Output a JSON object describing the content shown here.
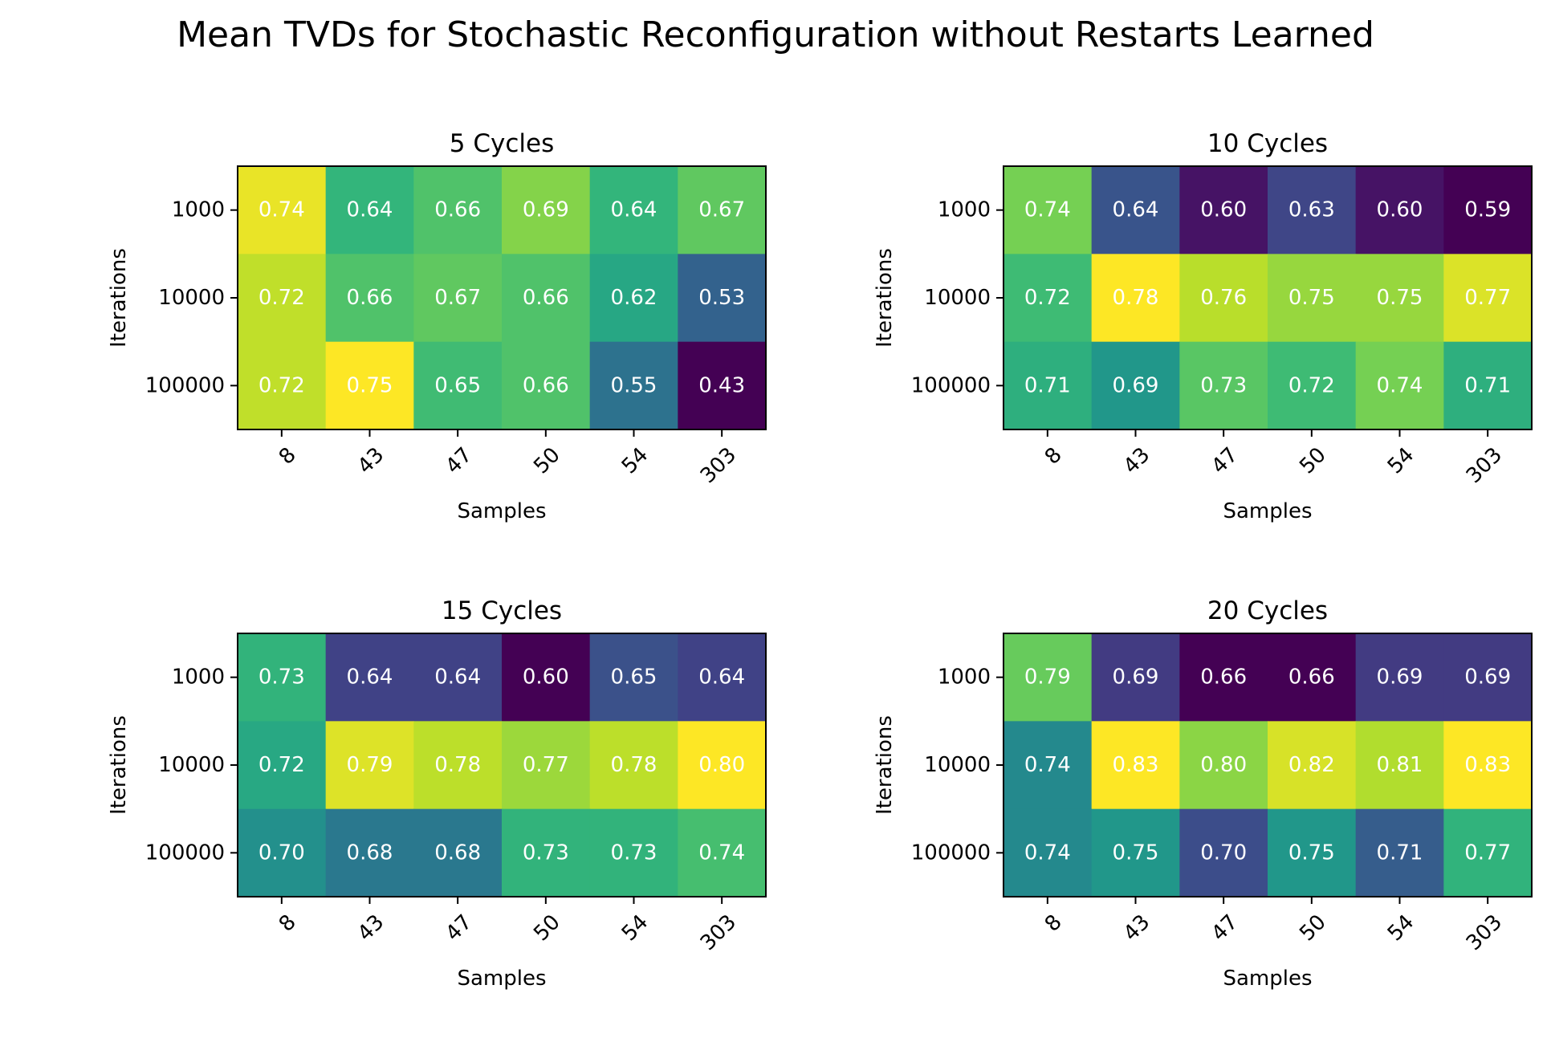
{
  "figure": {
    "title": "Mean TVDs for Stochastic Reconfiguration without Restarts Learned"
  },
  "chart_data": [
    {
      "type": "heatmap",
      "title": "5 Cycles",
      "xlabel": "Samples",
      "ylabel": "Iterations",
      "x_categories": [
        "8",
        "43",
        "47",
        "50",
        "54",
        "303"
      ],
      "y_categories": [
        "1000",
        "10000",
        "100000"
      ],
      "values": [
        [
          0.74,
          0.64,
          0.66,
          0.69,
          0.64,
          0.67
        ],
        [
          0.72,
          0.66,
          0.67,
          0.66,
          0.62,
          0.53
        ],
        [
          0.72,
          0.75,
          0.65,
          0.66,
          0.55,
          0.43
        ]
      ],
      "colormap": "viridis",
      "cell_text_color": "#ffffff"
    },
    {
      "type": "heatmap",
      "title": "10 Cycles",
      "xlabel": "Samples",
      "ylabel": "Iterations",
      "x_categories": [
        "8",
        "43",
        "47",
        "50",
        "54",
        "303"
      ],
      "y_categories": [
        "1000",
        "10000",
        "100000"
      ],
      "values": [
        [
          0.74,
          0.64,
          0.6,
          0.63,
          0.6,
          0.59
        ],
        [
          0.72,
          0.78,
          0.76,
          0.75,
          0.75,
          0.77
        ],
        [
          0.71,
          0.69,
          0.73,
          0.72,
          0.74,
          0.71
        ]
      ],
      "colormap": "viridis",
      "cell_text_color": "#ffffff"
    },
    {
      "type": "heatmap",
      "title": "15 Cycles",
      "xlabel": "Samples",
      "ylabel": "Iterations",
      "x_categories": [
        "8",
        "43",
        "47",
        "50",
        "54",
        "303"
      ],
      "y_categories": [
        "1000",
        "10000",
        "100000"
      ],
      "values": [
        [
          0.73,
          0.64,
          0.64,
          0.6,
          0.65,
          0.64
        ],
        [
          0.72,
          0.79,
          0.78,
          0.77,
          0.78,
          0.8
        ],
        [
          0.7,
          0.68,
          0.68,
          0.73,
          0.73,
          0.74
        ]
      ],
      "colormap": "viridis",
      "cell_text_color": "#ffffff"
    },
    {
      "type": "heatmap",
      "title": "20 Cycles",
      "xlabel": "Samples",
      "ylabel": "Iterations",
      "x_categories": [
        "8",
        "43",
        "47",
        "50",
        "54",
        "303"
      ],
      "y_categories": [
        "1000",
        "10000",
        "100000"
      ],
      "values": [
        [
          0.79,
          0.69,
          0.66,
          0.66,
          0.69,
          0.69
        ],
        [
          0.74,
          0.83,
          0.8,
          0.82,
          0.81,
          0.83
        ],
        [
          0.74,
          0.75,
          0.7,
          0.75,
          0.71,
          0.77
        ]
      ],
      "colormap": "viridis",
      "cell_text_color": "#ffffff"
    }
  ]
}
